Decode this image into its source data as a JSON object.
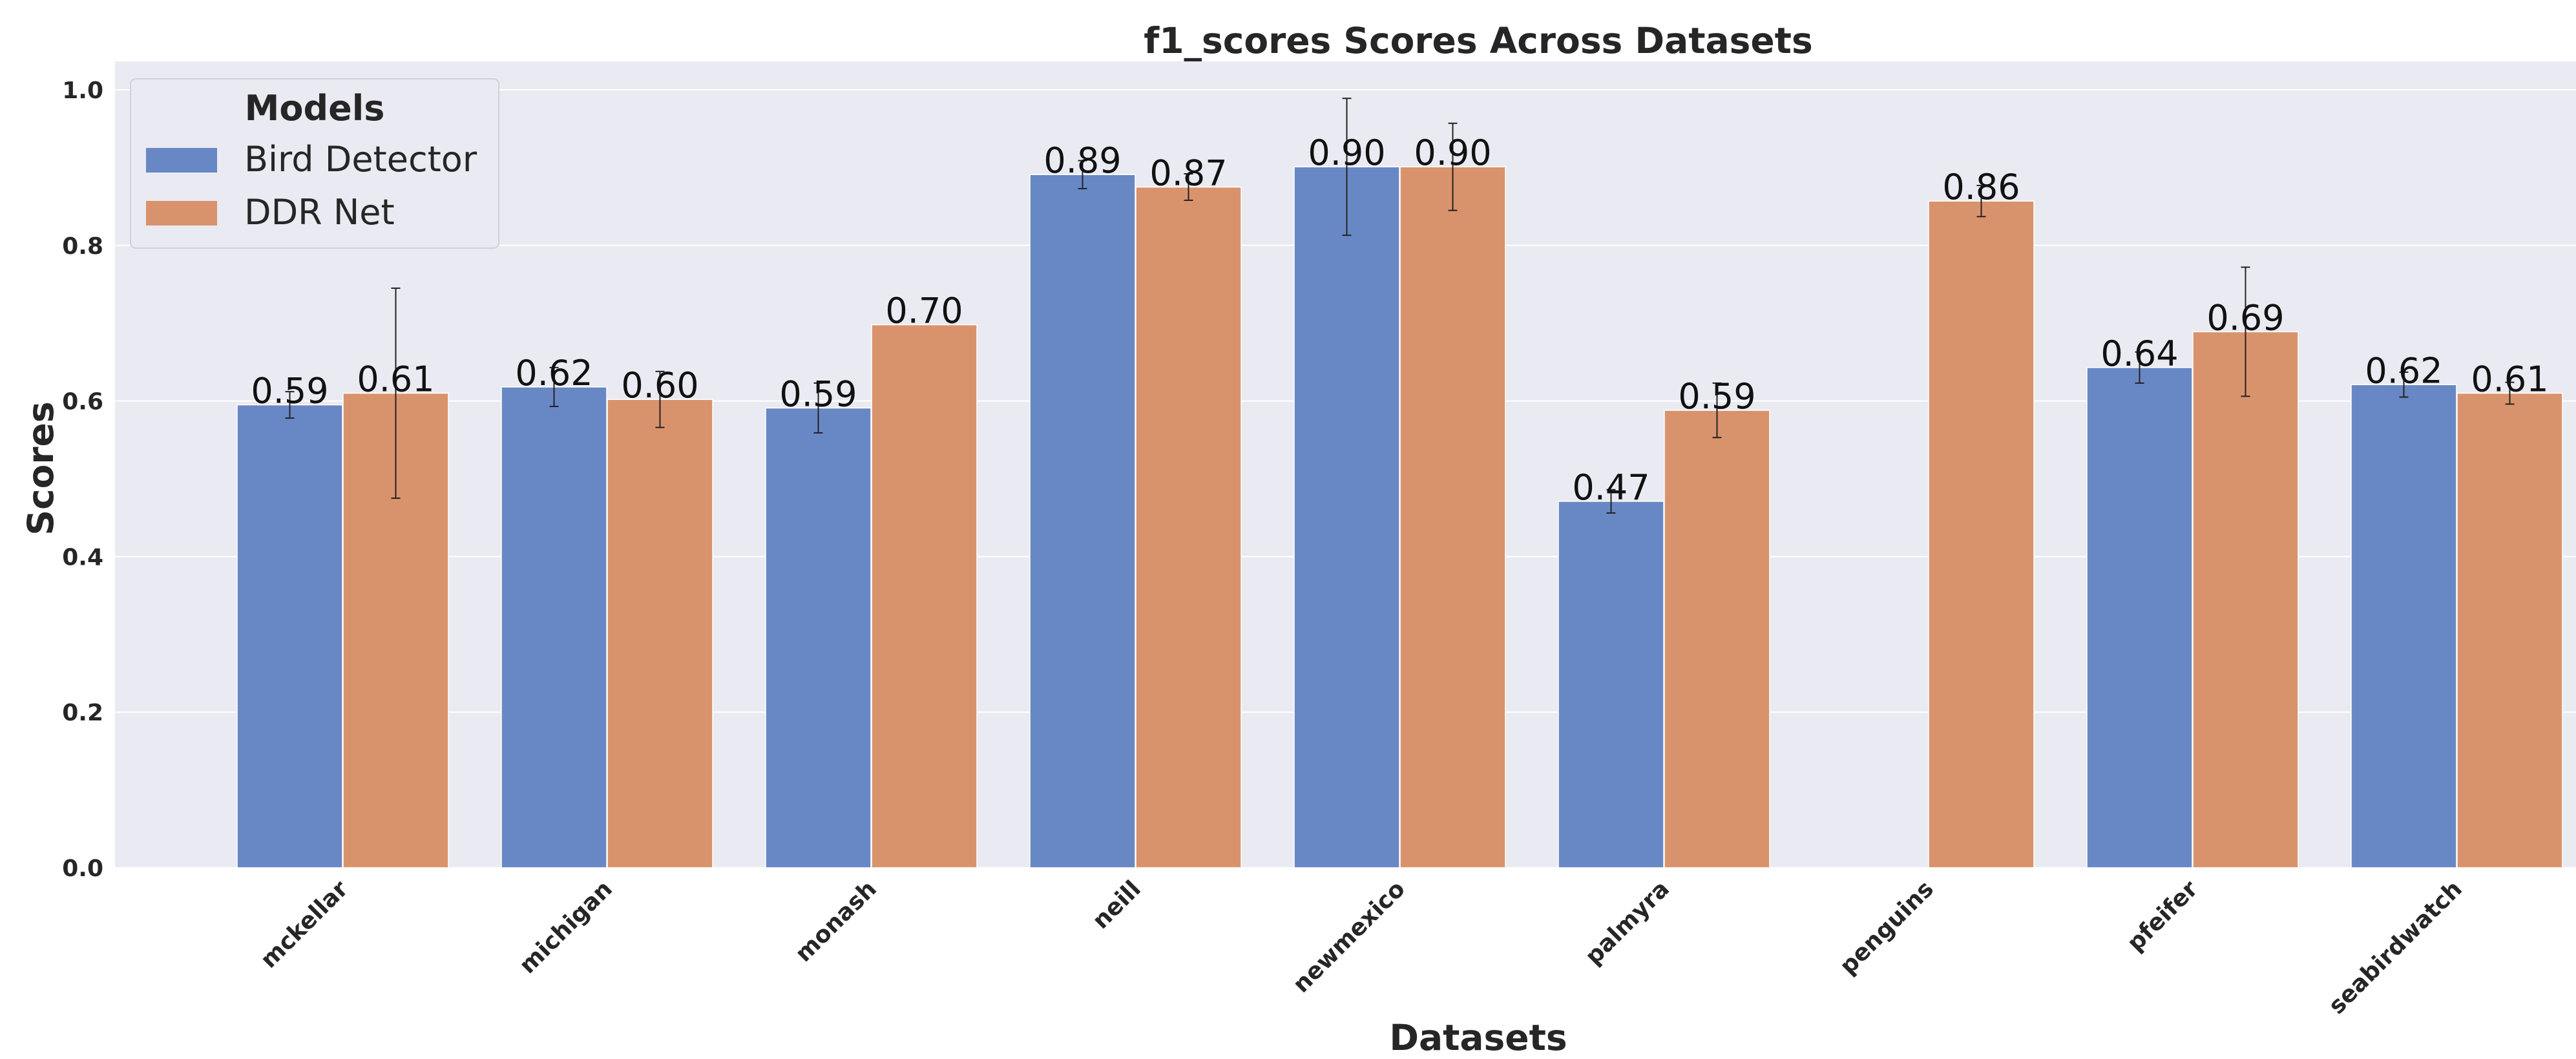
{
  "chart_data": {
    "type": "bar",
    "title": "f1_scores Scores Across Datasets",
    "xlabel": "Datasets",
    "ylabel": "Scores",
    "ylim": [
      0,
      1.0
    ],
    "yticks": [
      "0.0",
      "0.2",
      "0.4",
      "0.6",
      "0.8",
      "1.0"
    ],
    "grid": true,
    "legend_title": "Models",
    "legend_position": "top-left",
    "categories": [
      "mckellar",
      "michigan",
      "monash",
      "neill",
      "newmexico",
      "palmyra",
      "penguins",
      "pfeifer",
      "seabirdwatch"
    ],
    "series": [
      {
        "name": "Bird Detector",
        "color": "#6888c5",
        "values": [
          0.595,
          0.618,
          0.591,
          0.891,
          0.901,
          0.471,
          null,
          0.643,
          0.621
        ],
        "labels": [
          "0.59",
          "0.62",
          "0.59",
          "0.89",
          "0.90",
          "0.47",
          null,
          "0.64",
          "0.62"
        ],
        "error": [
          0.017,
          0.025,
          0.032,
          0.018,
          0.088,
          0.015,
          null,
          0.02,
          0.016
        ]
      },
      {
        "name": "DDR Net",
        "color": "#d9936c",
        "values": [
          0.61,
          0.602,
          0.698,
          0.875,
          0.901,
          0.588,
          0.857,
          0.689,
          0.61
        ],
        "labels": [
          "0.61",
          "0.60",
          "0.70",
          "0.87",
          "0.90",
          "0.59",
          "0.86",
          "0.69",
          "0.61"
        ],
        "error": [
          0.135,
          0.036,
          null,
          0.017,
          0.056,
          0.035,
          0.02,
          0.083,
          0.014
        ]
      }
    ]
  }
}
